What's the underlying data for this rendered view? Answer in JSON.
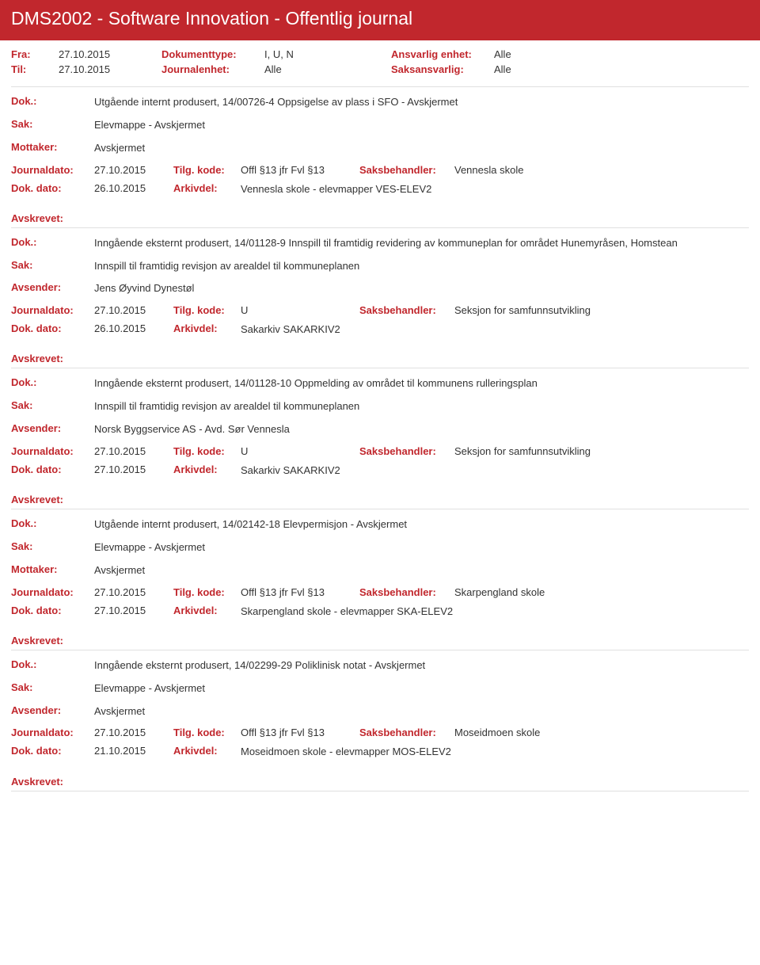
{
  "header": {
    "title": "DMS2002 - Software Innovation - Offentlig journal"
  },
  "filters": {
    "row1": {
      "l1": "Fra:",
      "v1": "27.10.2015",
      "l2": "Dokumenttype:",
      "v2": "I, U, N",
      "l3": "Ansvarlig enhet:",
      "v3": "Alle"
    },
    "row2": {
      "l1": "Til:",
      "v1": "27.10.2015",
      "l2": "Journalenhet:",
      "v2": "Alle",
      "l3": "Saksansvarlig:",
      "v3": "Alle"
    }
  },
  "labels": {
    "dok": "Dok.:",
    "sak": "Sak:",
    "mottaker": "Mottaker:",
    "avsender": "Avsender:",
    "journaldato": "Journaldato:",
    "tilgkode": "Tilg. kode:",
    "saksbehandler": "Saksbehandler:",
    "dokdato": "Dok. dato:",
    "arkivdel": "Arkivdel:",
    "avskrevet": "Avskrevet:"
  },
  "entries": [
    {
      "dok": "Utgående internt produsert, 14/00726-4 Oppsigelse av plass i SFO - Avskjermet",
      "sak": "Elevmappe - Avskjermet",
      "partyLabel": "Mottaker:",
      "party": "Avskjermet",
      "journaldato": "27.10.2015",
      "tilgkode": "Offl §13 jfr Fvl §13",
      "saksbehandler": "Vennesla skole",
      "dokdato": "26.10.2015",
      "arkivdel": "Vennesla skole - elevmapper VES-ELEV2"
    },
    {
      "dok": "Inngående eksternt produsert, 14/01128-9 Innspill til framtidig revidering av kommuneplan for området Hunemyråsen, Homstean",
      "sak": "Innspill til framtidig revisjon av arealdel til kommuneplanen",
      "partyLabel": "Avsender:",
      "party": "Jens Øyvind Dynestøl",
      "journaldato": "27.10.2015",
      "tilgkode": "U",
      "saksbehandler": "Seksjon for samfunnsutvikling",
      "dokdato": "26.10.2015",
      "arkivdel": "Sakarkiv SAKARKIV2"
    },
    {
      "dok": "Inngående eksternt produsert, 14/01128-10 Oppmelding av området til kommunens rulleringsplan",
      "sak": "Innspill til framtidig revisjon av arealdel til kommuneplanen",
      "partyLabel": "Avsender:",
      "party": "Norsk Byggservice AS - Avd. Sør Vennesla",
      "journaldato": "27.10.2015",
      "tilgkode": "U",
      "saksbehandler": "Seksjon for samfunnsutvikling",
      "dokdato": "27.10.2015",
      "arkivdel": "Sakarkiv SAKARKIV2"
    },
    {
      "dok": "Utgående internt produsert, 14/02142-18 Elevpermisjon - Avskjermet",
      "sak": "Elevmappe - Avskjermet",
      "partyLabel": "Mottaker:",
      "party": "Avskjermet",
      "journaldato": "27.10.2015",
      "tilgkode": "Offl §13 jfr Fvl §13",
      "saksbehandler": "Skarpengland skole",
      "dokdato": "27.10.2015",
      "arkivdel": "Skarpengland skole - elevmapper SKA-ELEV2"
    },
    {
      "dok": "Inngående eksternt produsert, 14/02299-29 Poliklinisk notat - Avskjermet",
      "sak": "Elevmappe - Avskjermet",
      "partyLabel": "Avsender:",
      "party": "Avskjermet",
      "journaldato": "27.10.2015",
      "tilgkode": "Offl §13 jfr Fvl §13",
      "saksbehandler": "Moseidmoen skole",
      "dokdato": "21.10.2015",
      "arkivdel": "Moseidmoen skole - elevmapper MOS-ELEV2"
    }
  ]
}
